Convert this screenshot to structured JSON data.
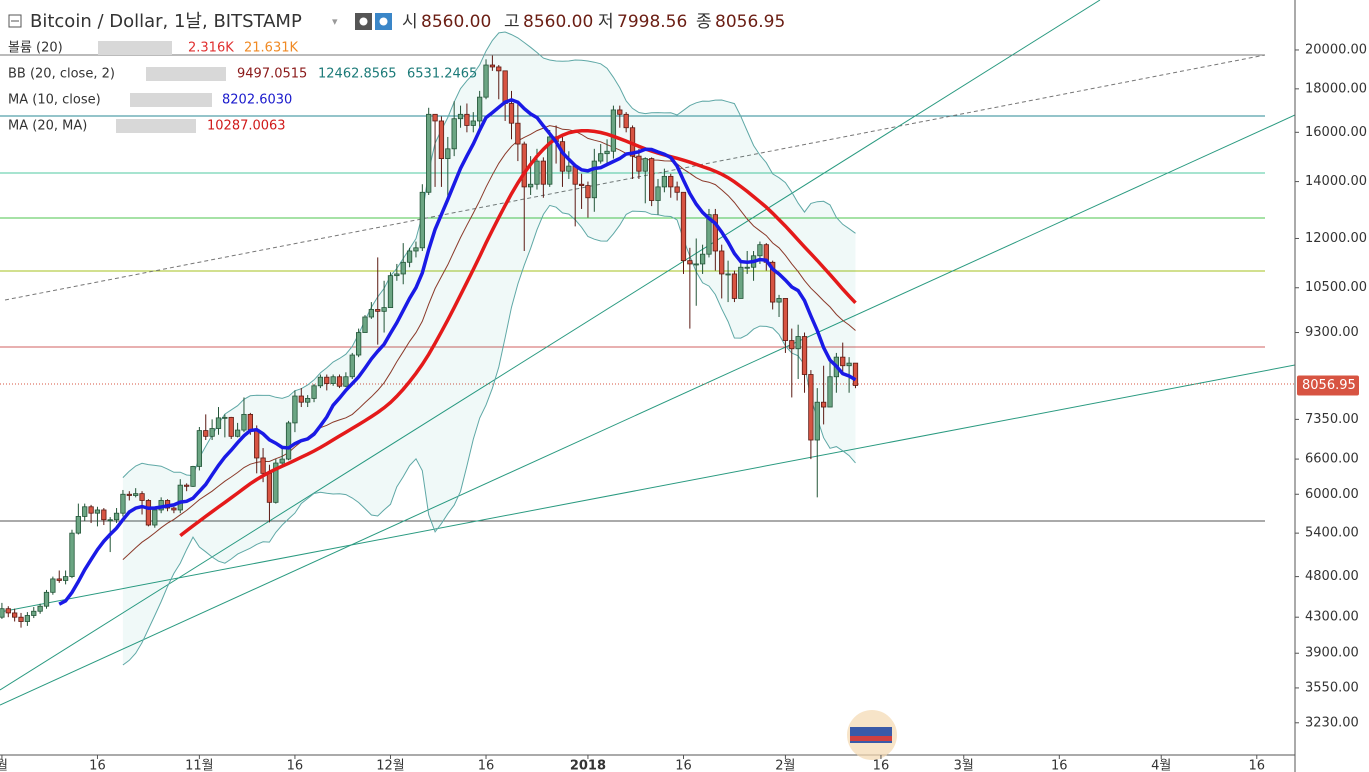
{
  "header": {
    "title": "Bitcoin / Dollar, 1날, BITSTAMP",
    "ohlc": [
      {
        "label": "시",
        "value": "8560.00"
      },
      {
        "label": "고",
        "value": "8560.00"
      },
      {
        "label": "저",
        "value": "7998.56"
      },
      {
        "label": "종",
        "value": "8056.95"
      }
    ]
  },
  "indicators": [
    {
      "name": "볼륨 (20)",
      "values": [
        "2.316K",
        "21.631K"
      ]
    },
    {
      "name": "BB (20, close, 2)",
      "values": [
        "9497.0515",
        "12462.8565",
        "6531.2465"
      ]
    },
    {
      "name": "MA (10, close)",
      "values": [
        "8202.6030"
      ]
    },
    {
      "name": "MA (20, MA)",
      "values": [
        "10287.0063"
      ]
    }
  ],
  "chart_data": {
    "type": "candlestick",
    "log_scale": true,
    "grid": false,
    "up_color": "#6ba583",
    "down_color": "#d75442",
    "ylim": [
      2960,
      22900
    ],
    "yticks": [
      {
        "value": 3230,
        "label": "3230.00"
      },
      {
        "value": 3550,
        "label": "3550.00"
      },
      {
        "value": 3900,
        "label": "3900.00"
      },
      {
        "value": 4300,
        "label": "4300.00"
      },
      {
        "value": 4800,
        "label": "4800.00"
      },
      {
        "value": 5400,
        "label": "5400.00"
      },
      {
        "value": 6000,
        "label": "6000.00"
      },
      {
        "value": 6600,
        "label": "6600.00"
      },
      {
        "value": 7350,
        "label": "7350.00"
      },
      {
        "value": 9300,
        "label": "9300.00"
      },
      {
        "value": 10500,
        "label": "10500.00"
      },
      {
        "value": 12000,
        "label": "12000.00"
      },
      {
        "value": 14000,
        "label": "14000.00"
      },
      {
        "value": 16000,
        "label": "16000.00"
      },
      {
        "value": 18000,
        "label": "18000.00"
      },
      {
        "value": 20000,
        "label": "20000.00"
      }
    ],
    "xlim": [
      -0.3,
      203
    ],
    "xticks": [
      {
        "value": 0,
        "label": "월"
      },
      {
        "value": 15,
        "label": "16"
      },
      {
        "value": 31,
        "label": "11월"
      },
      {
        "value": 46,
        "label": "16"
      },
      {
        "value": 61,
        "label": "12월"
      },
      {
        "value": 76,
        "label": "16"
      },
      {
        "value": 92,
        "label": "2018"
      },
      {
        "value": 107,
        "label": "16"
      },
      {
        "value": 123,
        "label": "2월"
      },
      {
        "value": 138,
        "label": "16"
      },
      {
        "value": 151,
        "label": "3월"
      },
      {
        "value": 166,
        "label": "16"
      },
      {
        "value": 182,
        "label": "4월"
      },
      {
        "value": 197,
        "label": "16"
      }
    ],
    "open": [
      4300,
      4400,
      4350,
      4300,
      4250,
      4320,
      4370,
      4430,
      4600,
      4770,
      4750,
      4800,
      5400,
      5650,
      5800,
      5700,
      5750,
      5600,
      5600,
      5700,
      6000,
      5980,
      6010,
      5900,
      5520,
      5750,
      5900,
      5780,
      5750,
      6150,
      6130,
      6470,
      7130,
      7020,
      7170,
      7380,
      7390,
      7020,
      7140,
      7450,
      7150,
      6620,
      6350,
      5870,
      6530,
      6600,
      7280,
      7830,
      7700,
      7780,
      8050,
      8240,
      8100,
      8250,
      8040,
      8250,
      8750,
      9300,
      9700,
      9900,
      9850,
      9950,
      10850,
      10900,
      11250,
      11600,
      11700,
      13600,
      16800,
      16500,
      14900,
      15300,
      16600,
      16800,
      16300,
      16500,
      17600,
      19200,
      19100,
      18900,
      17300,
      16400,
      15500,
      13800,
      13900,
      14800,
      13900,
      15800,
      15600,
      14400,
      14600,
      13900,
      13850,
      13400,
      14800,
      15100,
      15200,
      17000,
      16800,
      16200,
      15000,
      14400,
      14900,
      13300,
      13800,
      14200,
      13800,
      13600,
      11300,
      11200,
      11200,
      11500,
      12800,
      11600,
      10900,
      10900,
      10200,
      11100,
      11100,
      11450,
      11800,
      11250,
      10100,
      10200,
      9100,
      8900,
      9200,
      8300,
      6950,
      7700,
      7600,
      8250,
      8700,
      8500,
      8560
    ],
    "high": [
      4470,
      4430,
      4400,
      4350,
      4360,
      4420,
      4460,
      4630,
      4800,
      4880,
      4880,
      5450,
      5850,
      5850,
      5830,
      5800,
      5780,
      5640,
      5780,
      6070,
      6050,
      6100,
      6050,
      5920,
      5800,
      5950,
      5920,
      5800,
      6250,
      6180,
      6480,
      7200,
      7450,
      7350,
      7600,
      7450,
      7400,
      7280,
      7800,
      7480,
      7230,
      6800,
      6500,
      6600,
      6800,
      7320,
      7950,
      8000,
      7850,
      8090,
      8300,
      8300,
      8300,
      8300,
      8350,
      8800,
      9400,
      9750,
      10100,
      11400,
      10700,
      10950,
      11200,
      11850,
      11700,
      11900,
      13900,
      17100,
      16800,
      16700,
      15800,
      17400,
      17200,
      17300,
      16900,
      17900,
      19500,
      19700,
      19200,
      18900,
      17900,
      17300,
      15600,
      15000,
      15300,
      14950,
      16100,
      16300,
      15800,
      15200,
      14700,
      14300,
      14000,
      15300,
      15500,
      15700,
      17200,
      17200,
      16900,
      16300,
      15300,
      14950,
      14950,
      14100,
      14500,
      14300,
      14000,
      13600,
      11700,
      12000,
      11800,
      13000,
      13000,
      11800,
      11300,
      11000,
      11300,
      11600,
      11600,
      11900,
      11850,
      11300,
      10300,
      10200,
      9400,
      9500,
      9300,
      8400,
      8000,
      8500,
      8600,
      8800,
      9050,
      8700,
      8560
    ],
    "low": [
      4280,
      4300,
      4250,
      4180,
      4200,
      4290,
      4340,
      4400,
      4570,
      4720,
      4700,
      4780,
      5380,
      5580,
      5550,
      5500,
      5520,
      5130,
      5550,
      5650,
      5900,
      5950,
      5680,
      5500,
      5480,
      5700,
      5730,
      5700,
      5700,
      6050,
      6120,
      6400,
      6950,
      6950,
      7050,
      7000,
      6970,
      7000,
      7100,
      7050,
      6350,
      6200,
      5560,
      5850,
      6450,
      6580,
      7100,
      7600,
      7600,
      7700,
      8000,
      7950,
      8050,
      8000,
      8020,
      8200,
      8700,
      9300,
      9650,
      9000,
      9300,
      9950,
      10700,
      10600,
      11100,
      11400,
      11600,
      13500,
      13800,
      13800,
      13400,
      15000,
      16200,
      16000,
      16000,
      16200,
      17500,
      18900,
      17500,
      16500,
      15700,
      14800,
      11600,
      13500,
      13700,
      13400,
      13800,
      14700,
      13800,
      14100,
      12400,
      13000,
      12700,
      12900,
      14700,
      14600,
      14900,
      16200,
      16000,
      14100,
      14100,
      13200,
      13100,
      12800,
      13600,
      13400,
      13300,
      10900,
      9400,
      10000,
      10900,
      11400,
      11000,
      10200,
      10100,
      10100,
      10200,
      10900,
      10700,
      11200,
      11000,
      9900,
      9700,
      8800,
      7800,
      8200,
      7900,
      6600,
      5950,
      7250,
      7600,
      7900,
      8300,
      7900,
      7998.56
    ],
    "close": [
      4400,
      4350,
      4300,
      4250,
      4320,
      4370,
      4430,
      4600,
      4770,
      4750,
      4800,
      5400,
      5650,
      5800,
      5700,
      5750,
      5600,
      5600,
      5700,
      6000,
      5980,
      6010,
      5900,
      5520,
      5750,
      5900,
      5780,
      5750,
      6150,
      6130,
      6470,
      7130,
      7020,
      7170,
      7380,
      7390,
      7020,
      7140,
      7450,
      7150,
      6620,
      6350,
      5870,
      6530,
      6600,
      7280,
      7830,
      7700,
      7780,
      8050,
      8240,
      8100,
      8250,
      8040,
      8250,
      8750,
      9300,
      9700,
      9900,
      9850,
      9950,
      10850,
      10900,
      11250,
      11600,
      11700,
      13600,
      16800,
      16500,
      14900,
      15300,
      16600,
      16800,
      16300,
      16500,
      17600,
      19200,
      19100,
      18900,
      17300,
      16400,
      15500,
      13800,
      13900,
      14800,
      13900,
      15800,
      15600,
      14400,
      14600,
      13900,
      13850,
      13400,
      14800,
      15100,
      15200,
      17000,
      16800,
      16200,
      15000,
      14400,
      14900,
      13300,
      13800,
      14200,
      13800,
      13600,
      11300,
      11200,
      11200,
      11500,
      12800,
      11600,
      10900,
      10900,
      10200,
      11100,
      11100,
      11450,
      11800,
      11250,
      10100,
      10200,
      9100,
      8900,
      9200,
      8300,
      6950,
      7700,
      7600,
      8250,
      8700,
      8500,
      8560,
      8056.95
    ]
  }
}
